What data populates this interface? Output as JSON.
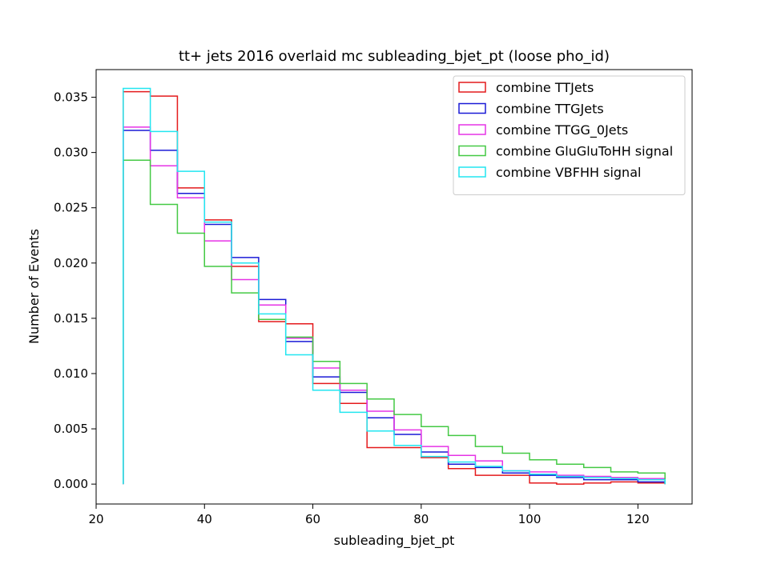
{
  "chart_data": {
    "type": "histogram-step",
    "title": "tt+ jets 2016 overlaid mc subleading_bjet_pt (loose pho_id)",
    "xlabel": "subleading_bjet_pt",
    "ylabel": "Number of Events",
    "xlim": [
      20,
      130
    ],
    "ylim": [
      -0.0018,
      0.0375
    ],
    "x_ticks": [
      20,
      40,
      60,
      80,
      100,
      120
    ],
    "x_tick_labels": [
      "20",
      "40",
      "60",
      "80",
      "100",
      "120"
    ],
    "y_ticks": [
      0.0,
      0.005,
      0.01,
      0.015,
      0.02,
      0.025,
      0.03,
      0.035
    ],
    "y_tick_labels": [
      "0.000",
      "0.005",
      "0.010",
      "0.015",
      "0.020",
      "0.025",
      "0.030",
      "0.035"
    ],
    "grid": false,
    "legend_position": "top-right",
    "bin_edges": [
      25,
      30,
      35,
      40,
      45,
      50,
      55,
      60,
      65,
      70,
      75,
      80,
      85,
      90,
      95,
      100,
      105,
      110,
      115,
      120,
      125
    ],
    "series": [
      {
        "name": "combine TTJets",
        "color": "#e41a1c",
        "values": [
          0.0355,
          0.0351,
          0.0268,
          0.0239,
          0.0197,
          0.0147,
          0.0145,
          0.0091,
          0.0073,
          0.0033,
          0.0033,
          0.0024,
          0.0014,
          0.0008,
          0.0008,
          0.0001,
          0.0,
          0.0001,
          0.0002,
          0.0001
        ]
      },
      {
        "name": "combine TTGJets",
        "color": "#1a1ad6",
        "values": [
          0.032,
          0.0302,
          0.0263,
          0.0235,
          0.0205,
          0.0167,
          0.0129,
          0.0097,
          0.0083,
          0.006,
          0.0045,
          0.0029,
          0.0018,
          0.0015,
          0.001,
          0.0008,
          0.0006,
          0.0004,
          0.0004,
          0.0002
        ]
      },
      {
        "name": "combine TTGG_0Jets",
        "color": "#e633e6",
        "values": [
          0.0323,
          0.0288,
          0.0259,
          0.022,
          0.0185,
          0.0162,
          0.0132,
          0.0105,
          0.0085,
          0.0066,
          0.0049,
          0.0034,
          0.0026,
          0.0021,
          0.0012,
          0.0011,
          0.0008,
          0.0007,
          0.0006,
          0.0005
        ]
      },
      {
        "name": "combine GluGluToHH signal",
        "color": "#44c944",
        "values": [
          0.0293,
          0.0253,
          0.0227,
          0.0197,
          0.0173,
          0.0149,
          0.0133,
          0.0111,
          0.0091,
          0.0077,
          0.0063,
          0.0052,
          0.0044,
          0.0034,
          0.0028,
          0.0022,
          0.0018,
          0.0015,
          0.0011,
          0.001
        ]
      },
      {
        "name": "combine VBFHH signal",
        "color": "#22e6f0",
        "values": [
          0.0358,
          0.0319,
          0.0283,
          0.0237,
          0.02,
          0.0154,
          0.0117,
          0.0085,
          0.0065,
          0.0048,
          0.0035,
          0.0025,
          0.002,
          0.0016,
          0.0012,
          0.0009,
          0.0007,
          0.0006,
          0.0005,
          0.0004
        ]
      }
    ]
  }
}
